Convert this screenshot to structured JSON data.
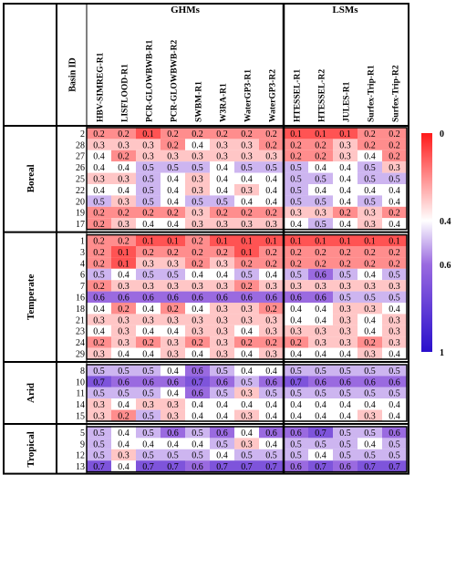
{
  "chart_data": {
    "type": "heatmap",
    "group_headers": [
      "GHMs",
      "LSMs"
    ],
    "corner_label": "Basin ID",
    "columns": [
      "HBV-SIMREG-R1",
      "LISFLOOD-R1",
      "PCR-GLOWBWB-R1",
      "PCR-GLOWBWB-R2",
      "SWBM-R1",
      "W3RA-R1",
      "WaterGP3-R1",
      "WaterGP3-R2",
      "HTESSEL-R1",
      "HTESSEL-R2",
      "JULES-R1",
      "Surfex-Trip-R1",
      "Surfex-Trip-R2"
    ],
    "column_groups": [
      0,
      0,
      0,
      0,
      0,
      0,
      0,
      0,
      1,
      1,
      1,
      1,
      1
    ],
    "climate_zones": [
      {
        "name": "Boreal",
        "rows": [
          {
            "basin": "2",
            "values": [
              0.2,
              0.2,
              0.1,
              0.2,
              0.2,
              0.2,
              0.2,
              0.2,
              0.1,
              0.1,
              0.1,
              0.2,
              0.2
            ]
          },
          {
            "basin": "28",
            "values": [
              0.3,
              0.3,
              0.3,
              0.2,
              0.4,
              0.3,
              0.3,
              0.2,
              0.2,
              0.2,
              0.3,
              0.2,
              0.2
            ]
          },
          {
            "basin": "27",
            "values": [
              0.4,
              0.2,
              0.3,
              0.3,
              0.3,
              0.3,
              0.3,
              0.3,
              0.2,
              0.2,
              0.3,
              0.4,
              0.2
            ]
          },
          {
            "basin": "26",
            "values": [
              0.4,
              0.4,
              0.5,
              0.5,
              0.5,
              0.4,
              0.5,
              0.5,
              0.5,
              0.4,
              0.4,
              0.5,
              0.3
            ]
          },
          {
            "basin": "25",
            "values": [
              0.3,
              0.3,
              0.5,
              0.4,
              0.3,
              0.4,
              0.4,
              0.4,
              0.5,
              0.5,
              0.4,
              0.5,
              0.5
            ]
          },
          {
            "basin": "22",
            "values": [
              0.4,
              0.4,
              0.5,
              0.4,
              0.3,
              0.4,
              0.3,
              0.4,
              0.5,
              0.4,
              0.4,
              0.4,
              0.4
            ]
          },
          {
            "basin": "20",
            "values": [
              0.5,
              0.3,
              0.5,
              0.4,
              0.5,
              0.5,
              0.4,
              0.4,
              0.5,
              0.5,
              0.4,
              0.5,
              0.4
            ]
          },
          {
            "basin": "19",
            "values": [
              0.2,
              0.2,
              0.2,
              0.2,
              0.3,
              0.2,
              0.2,
              0.2,
              0.3,
              0.3,
              0.2,
              0.3,
              0.2
            ]
          },
          {
            "basin": "17",
            "values": [
              0.2,
              0.3,
              0.4,
              0.4,
              0.3,
              0.3,
              0.3,
              0.3,
              0.4,
              0.5,
              0.4,
              0.3,
              0.4
            ]
          }
        ]
      },
      {
        "name": "Temperate",
        "rows": [
          {
            "basin": "1",
            "values": [
              0.2,
              0.2,
              0.1,
              0.1,
              0.2,
              0.1,
              0.1,
              0.1,
              0.1,
              0.1,
              0.1,
              0.1,
              0.1
            ]
          },
          {
            "basin": "3",
            "values": [
              0.2,
              0.1,
              0.2,
              0.2,
              0.2,
              0.2,
              0.1,
              0.2,
              0.2,
              0.2,
              0.2,
              0.2,
              0.2
            ]
          },
          {
            "basin": "4",
            "values": [
              0.2,
              0.1,
              0.3,
              0.3,
              0.2,
              0.3,
              0.2,
              0.2,
              0.2,
              0.2,
              0.2,
              0.2,
              0.2
            ]
          },
          {
            "basin": "6",
            "values": [
              0.5,
              0.4,
              0.5,
              0.5,
              0.4,
              0.4,
              0.5,
              0.4,
              0.5,
              0.6,
              0.5,
              0.4,
              0.5
            ]
          },
          {
            "basin": "7",
            "values": [
              0.2,
              0.3,
              0.3,
              0.3,
              0.3,
              0.3,
              0.2,
              0.3,
              0.3,
              0.3,
              0.3,
              0.3,
              0.3
            ]
          },
          {
            "basin": "16",
            "values": [
              0.6,
              0.6,
              0.6,
              0.6,
              0.6,
              0.6,
              0.6,
              0.6,
              0.6,
              0.6,
              0.5,
              0.5,
              0.5
            ]
          },
          {
            "basin": "18",
            "values": [
              0.4,
              0.2,
              0.4,
              0.2,
              0.4,
              0.3,
              0.3,
              0.2,
              0.4,
              0.4,
              0.3,
              0.3,
              0.4
            ]
          },
          {
            "basin": "21",
            "values": [
              0.3,
              0.3,
              0.3,
              0.3,
              0.3,
              0.3,
              0.3,
              0.3,
              0.4,
              0.4,
              0.3,
              0.4,
              0.3
            ]
          },
          {
            "basin": "23",
            "values": [
              0.4,
              0.3,
              0.4,
              0.4,
              0.3,
              0.3,
              0.4,
              0.3,
              0.3,
              0.3,
              0.3,
              0.4,
              0.3
            ]
          },
          {
            "basin": "24",
            "values": [
              0.2,
              0.3,
              0.2,
              0.3,
              0.2,
              0.3,
              0.2,
              0.2,
              0.2,
              0.3,
              0.3,
              0.2,
              0.3
            ]
          },
          {
            "basin": "29",
            "values": [
              0.3,
              0.4,
              0.4,
              0.3,
              0.4,
              0.3,
              0.4,
              0.3,
              0.4,
              0.4,
              0.4,
              0.3,
              0.4
            ]
          }
        ]
      },
      {
        "name": "Arid",
        "rows": [
          {
            "basin": "8",
            "values": [
              0.5,
              0.5,
              0.5,
              0.4,
              0.6,
              0.5,
              0.4,
              0.4,
              0.5,
              0.5,
              0.5,
              0.5,
              0.5
            ]
          },
          {
            "basin": "10",
            "values": [
              0.7,
              0.6,
              0.6,
              0.6,
              0.7,
              0.6,
              0.5,
              0.6,
              0.7,
              0.6,
              0.6,
              0.6,
              0.6
            ]
          },
          {
            "basin": "11",
            "values": [
              0.5,
              0.5,
              0.5,
              0.4,
              0.6,
              0.5,
              0.3,
              0.5,
              0.5,
              0.5,
              0.5,
              0.5,
              0.5
            ]
          },
          {
            "basin": "14",
            "values": [
              0.3,
              0.4,
              0.3,
              0.3,
              0.4,
              0.4,
              0.4,
              0.4,
              0.4,
              0.4,
              0.4,
              0.4,
              0.4
            ]
          },
          {
            "basin": "15",
            "values": [
              0.3,
              0.2,
              0.5,
              0.3,
              0.4,
              0.4,
              0.3,
              0.4,
              0.4,
              0.4,
              0.4,
              0.3,
              0.4
            ]
          }
        ]
      },
      {
        "name": "Tropical",
        "rows": [
          {
            "basin": "5",
            "values": [
              0.5,
              0.4,
              0.5,
              0.6,
              0.5,
              0.6,
              0.4,
              0.6,
              0.6,
              0.7,
              0.5,
              0.5,
              0.6
            ]
          },
          {
            "basin": "9",
            "values": [
              0.5,
              0.4,
              0.4,
              0.4,
              0.4,
              0.5,
              0.3,
              0.4,
              0.5,
              0.5,
              0.5,
              0.4,
              0.5
            ]
          },
          {
            "basin": "12",
            "values": [
              0.5,
              0.3,
              0.5,
              0.5,
              0.5,
              0.4,
              0.5,
              0.5,
              0.5,
              0.4,
              0.5,
              0.5,
              0.5
            ]
          },
          {
            "basin": "13",
            "values": [
              0.7,
              0.4,
              0.7,
              0.7,
              0.6,
              0.7,
              0.7,
              0.7,
              0.6,
              0.7,
              0.6,
              0.7,
              0.7
            ]
          }
        ]
      }
    ],
    "colorbar": {
      "min": 0,
      "max": 1,
      "ticks": [
        0,
        0.4,
        0.6,
        1
      ],
      "tick_labels": [
        "0",
        "0.4",
        "0.6",
        "1"
      ],
      "colors": [
        "#ff1a1a",
        "#ffffff",
        "#9a6ae0",
        "#2a10cc"
      ]
    }
  }
}
